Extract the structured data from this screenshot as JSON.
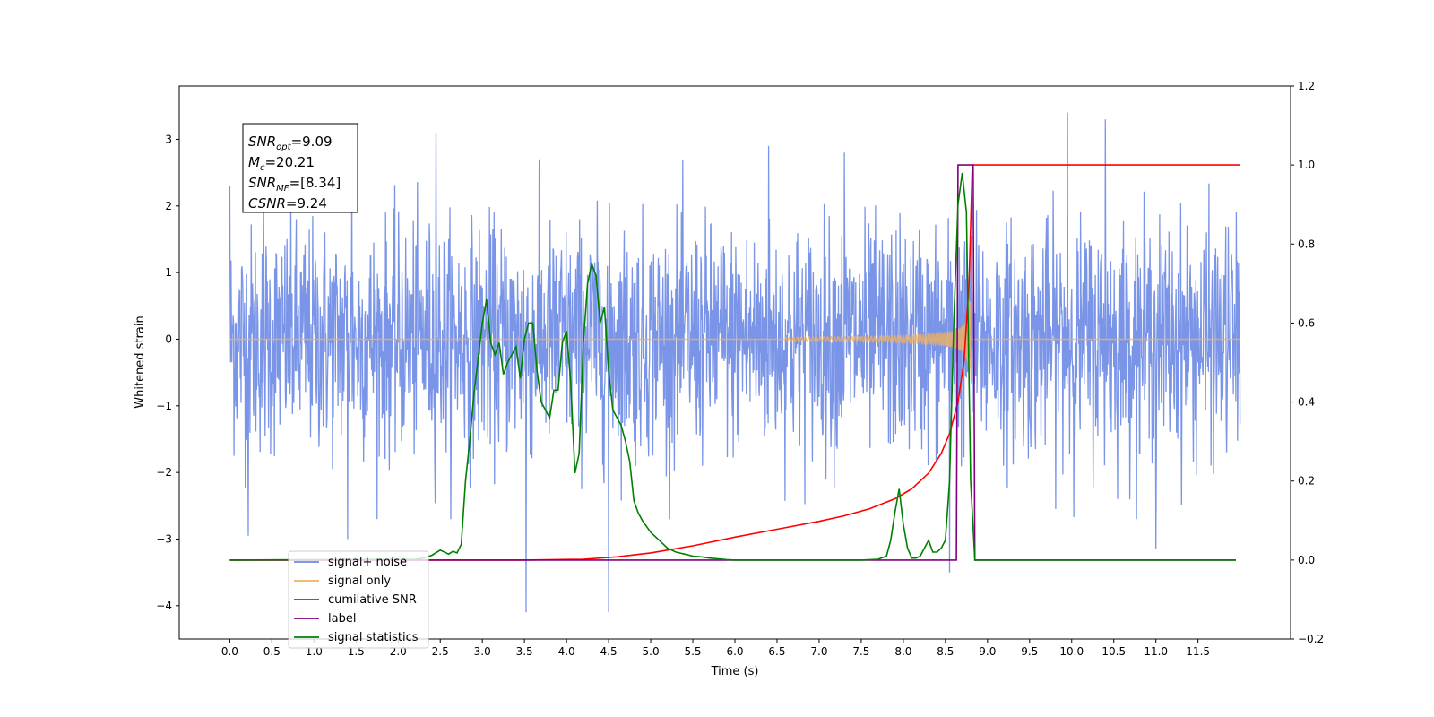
{
  "chart_data": {
    "type": "line",
    "xlabel": "Time (s)",
    "ylabel": "Whitened strain",
    "xlim": [
      -0.6,
      12.6
    ],
    "ylim": [
      -4.5,
      3.8
    ],
    "y2lim": [
      -0.2,
      1.2
    ],
    "x_ticks": [
      0.0,
      0.5,
      1.0,
      1.5,
      2.0,
      2.5,
      3.0,
      3.5,
      4.0,
      4.5,
      5.0,
      5.5,
      6.0,
      6.5,
      7.0,
      7.5,
      8.0,
      8.5,
      9.0,
      9.5,
      10.0,
      10.5,
      11.0,
      11.5
    ],
    "x_tick_labels": [
      "0.0",
      "0.5",
      "1.0",
      "1.5",
      "2.0",
      "2.5",
      "3.0",
      "3.5",
      "4.0",
      "4.5",
      "5.0",
      "5.5",
      "6.0",
      "6.5",
      "7.0",
      "7.5",
      "8.0",
      "8.5",
      "9.0",
      "9.5",
      "10.0",
      "10.5",
      "11.0",
      "11.5"
    ],
    "y_ticks": [
      -4,
      -3,
      -2,
      -1,
      0,
      1,
      2,
      3
    ],
    "y_tick_labels": [
      "−4",
      "−3",
      "−2",
      "−1",
      "0",
      "1",
      "2",
      "3"
    ],
    "y2_ticks": [
      -0.2,
      0.0,
      0.2,
      0.4,
      0.6,
      0.8,
      1.0,
      1.2
    ],
    "y2_tick_labels": [
      "−0.2",
      "0.0",
      "0.2",
      "0.4",
      "0.6",
      "0.8",
      "1.0",
      "1.2"
    ],
    "grid": false,
    "legend_position": "lower-left",
    "annotation": {
      "lines": [
        {
          "main": "SNR",
          "sub": "opt",
          "rest": "=9.09"
        },
        {
          "main": "M",
          "sub": "c",
          "rest": "=20.21"
        },
        {
          "main": "SNR",
          "sub": "MF",
          "rest": "=[8.34]"
        },
        {
          "main": "CSNR",
          "sub": "",
          "rest": "=9.24"
        }
      ]
    },
    "series": [
      {
        "name": "signal+ noise",
        "color": "#6b8ae6",
        "axis": "left",
        "kind": "noise",
        "x_range": [
          0.0,
          12.0
        ],
        "amplitude_std": 0.85,
        "peaks": [
          [
            0.0,
            2.3
          ],
          [
            0.4,
            2.6
          ],
          [
            1.45,
            2.7
          ],
          [
            2.45,
            3.1
          ],
          [
            6.4,
            2.9
          ],
          [
            7.3,
            2.8
          ],
          [
            9.95,
            3.4
          ],
          [
            10.4,
            3.3
          ],
          [
            3.52,
            -4.1
          ],
          [
            4.5,
            -4.1
          ],
          [
            1.4,
            -3.0
          ],
          [
            0.22,
            -2.95
          ],
          [
            8.55,
            -3.5
          ],
          [
            11.0,
            -3.15
          ]
        ]
      },
      {
        "name": "signal only",
        "color": "#f0b060",
        "axis": "left",
        "kind": "chirp",
        "x_range": [
          0.0,
          12.0
        ],
        "merger_time": 8.8
      },
      {
        "name": "cumilative SNR",
        "color": "#ff0000",
        "axis": "right",
        "x": [
          0.0,
          3.5,
          4.2,
          4.6,
          5.0,
          5.5,
          6.0,
          6.5,
          7.0,
          7.3,
          7.6,
          7.9,
          8.1,
          8.3,
          8.45,
          8.55,
          8.65,
          8.72,
          8.78,
          8.82,
          12.0
        ],
        "y": [
          0.0,
          0.0,
          0.002,
          0.008,
          0.018,
          0.036,
          0.058,
          0.078,
          0.098,
          0.112,
          0.13,
          0.155,
          0.18,
          0.22,
          0.27,
          0.32,
          0.4,
          0.5,
          0.7,
          1.0,
          1.0
        ]
      },
      {
        "name": "label",
        "color": "#800080",
        "axis": "right",
        "x": [
          0.0,
          8.63,
          8.65,
          8.83,
          8.85,
          11.95
        ],
        "y": [
          0.0,
          0.0,
          1.0,
          1.0,
          0.0,
          0.0
        ]
      },
      {
        "name": "signal statistics",
        "color": "#008000",
        "axis": "right",
        "x": [
          0.0,
          2.2,
          2.3,
          2.4,
          2.5,
          2.6,
          2.65,
          2.7,
          2.75,
          2.8,
          2.85,
          2.9,
          3.0,
          3.05,
          3.1,
          3.15,
          3.2,
          3.25,
          3.3,
          3.35,
          3.4,
          3.45,
          3.5,
          3.55,
          3.6,
          3.65,
          3.7,
          3.8,
          3.85,
          3.9,
          3.95,
          4.0,
          4.05,
          4.1,
          4.15,
          4.2,
          4.25,
          4.3,
          4.35,
          4.4,
          4.45,
          4.5,
          4.55,
          4.6,
          4.65,
          4.7,
          4.75,
          4.8,
          4.85,
          4.9,
          5.0,
          5.1,
          5.2,
          5.3,
          5.4,
          5.5,
          5.6,
          5.7,
          5.8,
          5.9,
          6.0,
          7.5,
          7.7,
          7.8,
          7.85,
          7.9,
          7.95,
          8.0,
          8.05,
          8.1,
          8.15,
          8.2,
          8.25,
          8.3,
          8.35,
          8.4,
          8.45,
          8.5,
          8.55,
          8.6,
          8.65,
          8.7,
          8.75,
          8.8,
          8.85,
          8.9,
          11.95
        ],
        "y": [
          0.0,
          0.002,
          0.005,
          0.012,
          0.025,
          0.015,
          0.022,
          0.018,
          0.04,
          0.2,
          0.3,
          0.42,
          0.6,
          0.66,
          0.55,
          0.52,
          0.55,
          0.47,
          0.5,
          0.52,
          0.54,
          0.46,
          0.56,
          0.6,
          0.6,
          0.48,
          0.4,
          0.36,
          0.43,
          0.43,
          0.55,
          0.58,
          0.45,
          0.22,
          0.27,
          0.55,
          0.7,
          0.75,
          0.72,
          0.6,
          0.64,
          0.48,
          0.38,
          0.36,
          0.34,
          0.3,
          0.25,
          0.15,
          0.12,
          0.1,
          0.07,
          0.05,
          0.03,
          0.02,
          0.015,
          0.01,
          0.008,
          0.005,
          0.003,
          0.001,
          0.0,
          0.0,
          0.002,
          0.01,
          0.05,
          0.12,
          0.18,
          0.09,
          0.03,
          0.005,
          0.005,
          0.01,
          0.03,
          0.05,
          0.02,
          0.02,
          0.03,
          0.05,
          0.2,
          0.6,
          0.9,
          0.98,
          0.88,
          0.2,
          0.0,
          0.0,
          0.0
        ]
      }
    ],
    "legend": [
      {
        "label": "signal+ noise",
        "color": "#6b8ae6"
      },
      {
        "label": "signal only",
        "color": "#f0b060"
      },
      {
        "label": "cumilative SNR",
        "color": "#ff0000"
      },
      {
        "label": "label",
        "color": "#800080"
      },
      {
        "label": "signal statistics",
        "color": "#008000"
      }
    ]
  }
}
